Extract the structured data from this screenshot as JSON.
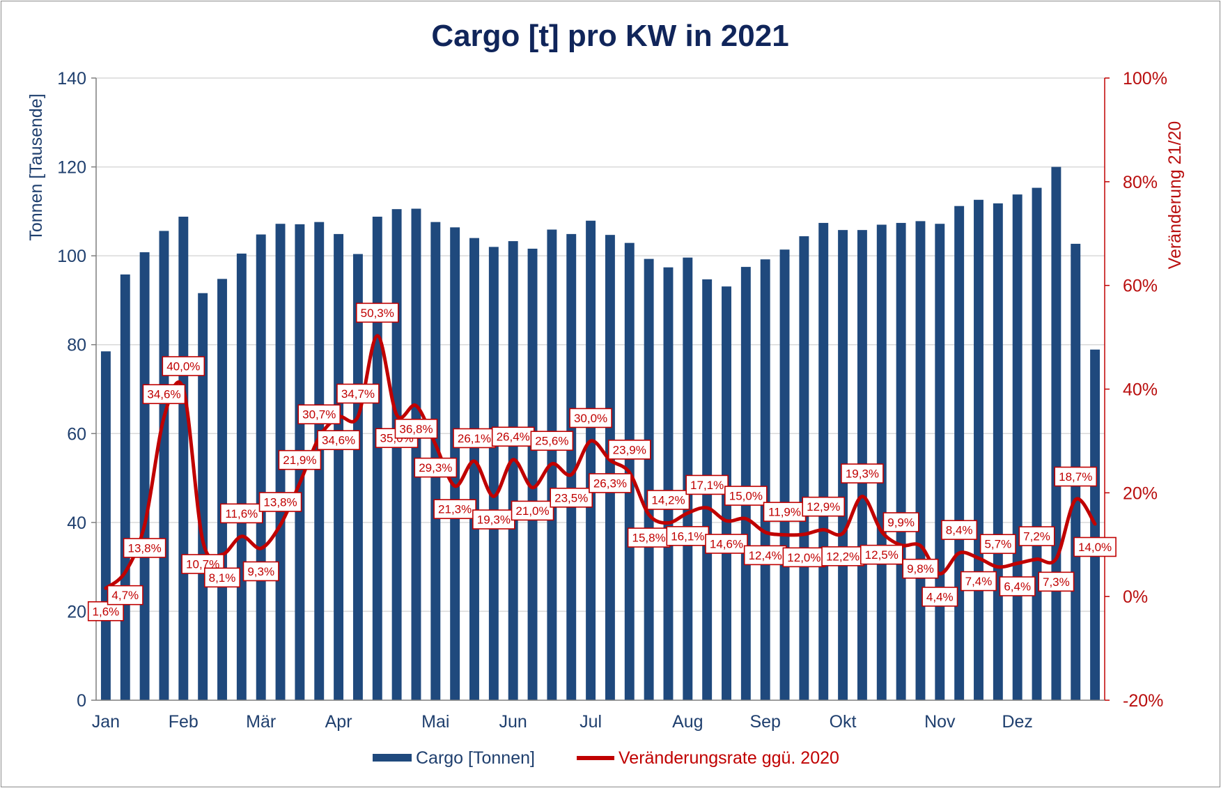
{
  "chart_data": {
    "type": "bar+line",
    "title": "Cargo [t] pro KW in 2021",
    "ylabel": "Tonnen [Tausende]",
    "y2label": "Veränderung 21/20",
    "ylim": [
      0,
      140
    ],
    "yticks": [
      0,
      20,
      40,
      60,
      80,
      100,
      120,
      140
    ],
    "y2lim": [
      -20,
      100
    ],
    "y2ticks": [
      "-20%",
      "0%",
      "20%",
      "40%",
      "60%",
      "80%",
      "100%"
    ],
    "y2tick_values": [
      -20,
      0,
      20,
      40,
      60,
      80,
      100
    ],
    "grid": true,
    "legend": "bottom",
    "months": [
      {
        "label": "Jan",
        "week": 1
      },
      {
        "label": "Feb",
        "week": 5
      },
      {
        "label": "Mär",
        "week": 9
      },
      {
        "label": "Apr",
        "week": 13
      },
      {
        "label": "Mai",
        "week": 18
      },
      {
        "label": "Jun",
        "week": 22
      },
      {
        "label": "Jul",
        "week": 26
      },
      {
        "label": "Aug",
        "week": 31
      },
      {
        "label": "Sep",
        "week": 35
      },
      {
        "label": "Okt",
        "week": 39
      },
      {
        "label": "Nov",
        "week": 44
      },
      {
        "label": "Dez",
        "week": 48
      }
    ],
    "series": [
      {
        "name": "Cargo [Tonnen]",
        "kind": "bar",
        "color": "#1f497d",
        "values": [
          78.5,
          95.8,
          100.8,
          105.6,
          108.8,
          91.6,
          94.8,
          100.5,
          104.8,
          107.2,
          107.1,
          107.6,
          104.9,
          100.4,
          108.8,
          110.5,
          110.6,
          107.6,
          106.4,
          104.0,
          102.0,
          103.3,
          101.6,
          105.9,
          104.9,
          107.9,
          104.7,
          102.9,
          99.3,
          97.4,
          99.6,
          94.7,
          93.1,
          97.5,
          99.2,
          101.4,
          104.4,
          107.4,
          105.8,
          105.8,
          107.0,
          107.4,
          107.8,
          107.2,
          111.2,
          112.6,
          111.8,
          113.8,
          115.3,
          120.0,
          102.7,
          78.9
        ]
      },
      {
        "name": "Veränderungsrate ggü. 2020",
        "kind": "line",
        "axis": "right",
        "color": "#c00000",
        "values": [
          1.6,
          4.7,
          13.8,
          34.6,
          40.0,
          10.7,
          8.1,
          11.6,
          9.3,
          13.8,
          21.9,
          30.7,
          34.6,
          34.7,
          50.3,
          35.0,
          36.8,
          29.3,
          21.3,
          26.1,
          19.3,
          26.4,
          21.0,
          25.6,
          23.5,
          30.0,
          26.3,
          23.9,
          15.8,
          14.2,
          16.1,
          17.1,
          14.6,
          15.0,
          12.4,
          11.9,
          12.0,
          12.9,
          12.2,
          19.3,
          12.5,
          9.9,
          9.8,
          4.4,
          8.4,
          7.4,
          5.7,
          6.4,
          7.2,
          7.3,
          18.7,
          14.0
        ],
        "labels": [
          "1,6%",
          "4,7%",
          "13,8%",
          "34,6%",
          "40,0%",
          "10,7%",
          "8,1%",
          "11,6%",
          "9,3%",
          "13,8%",
          "21,9%",
          "30,7%",
          "34,6%",
          "34,7%",
          "50,3%",
          "35,0%",
          "36,8%",
          "29,3%",
          "21,3%",
          "26,1%",
          "19,3%",
          "26,4%",
          "21,0%",
          "25,6%",
          "23,5%",
          "30,0%",
          "26,3%",
          "23,9%",
          "15,8%",
          "14,2%",
          "16,1%",
          "17,1%",
          "14,6%",
          "15,0%",
          "12,4%",
          "11,9%",
          "12,0%",
          "12,9%",
          "12,2%",
          "19,3%",
          "12,5%",
          "9,9%",
          "9,8%",
          "4,4%",
          "8,4%",
          "7,4%",
          "5,7%",
          "6,4%",
          "7,2%",
          "7,3%",
          "18,7%",
          "14,0%"
        ],
        "label_side": [
          1,
          1,
          1,
          -1,
          -1,
          1,
          1,
          -1,
          1,
          -1,
          -1,
          -1,
          1,
          -1,
          -1,
          1,
          1,
          1,
          1,
          -1,
          1,
          -1,
          1,
          -1,
          1,
          -1,
          1,
          -1,
          1,
          -1,
          1,
          -1,
          1,
          -1,
          1,
          -1,
          1,
          -1,
          1,
          -1,
          1,
          -1,
          1,
          1,
          -1,
          1,
          -1,
          1,
          -1,
          1,
          -1,
          1
        ]
      }
    ]
  }
}
